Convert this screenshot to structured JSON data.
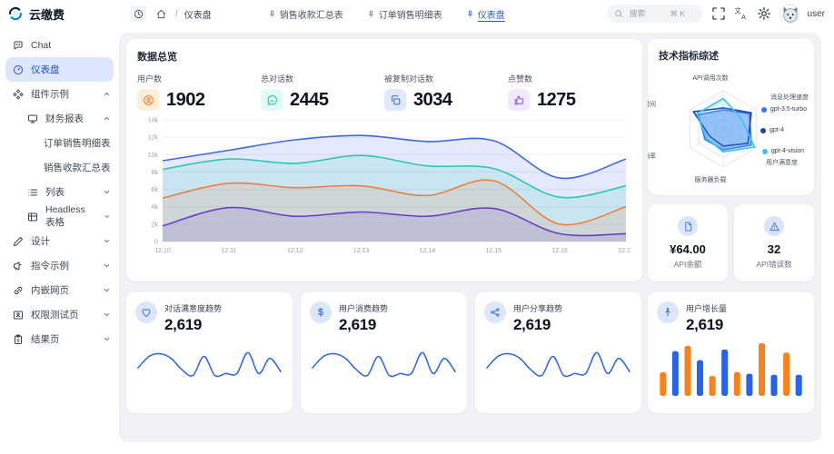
{
  "colors": {
    "accent": "#2b59d8",
    "panel_bg": "#f0f2f5"
  },
  "header": {
    "app_title": "云缴费",
    "breadcrumb": {
      "separator": "/",
      "page": "仪表盘"
    },
    "tabs": [
      {
        "label": "销售收款汇总表",
        "active": false
      },
      {
        "label": "订单销售明细表",
        "active": false
      },
      {
        "label": "仪表盘",
        "active": true
      }
    ],
    "search": {
      "placeholder": "搜索",
      "shortcut": "⌘ K"
    },
    "user_label": "user"
  },
  "sidebar": {
    "items": [
      {
        "label": "Chat",
        "icon": "chat-icon",
        "level": 0
      },
      {
        "label": "仪表盘",
        "icon": "dashboard-icon",
        "level": 0,
        "active": true
      },
      {
        "label": "组件示例",
        "icon": "components-icon",
        "level": 0,
        "expanded": true
      },
      {
        "label": "财务报表",
        "icon": "monitor-icon",
        "level": 1,
        "expanded": true
      },
      {
        "label": "订单销售明细表",
        "level": 2
      },
      {
        "label": "销售收款汇总表",
        "level": 2
      },
      {
        "label": "列表",
        "icon": "list-icon",
        "level": 1,
        "expanded": false
      },
      {
        "label": "Headless 表格",
        "icon": "table-icon",
        "level": 1,
        "expanded": false
      },
      {
        "label": "设计",
        "icon": "pen-icon",
        "level": 0,
        "expanded": false
      },
      {
        "label": "指令示例",
        "icon": "megaphone-icon",
        "level": 0,
        "expanded": false
      },
      {
        "label": "内嵌网页",
        "icon": "link-icon",
        "level": 0,
        "expanded": false
      },
      {
        "label": "权限测试页",
        "icon": "idcard-icon",
        "level": 0,
        "expanded": false
      },
      {
        "label": "结果页",
        "icon": "clipboard-icon",
        "level": 0,
        "expanded": false
      }
    ]
  },
  "overview": {
    "title": "数据总览",
    "stats": [
      {
        "label": "用户数",
        "value": "1902",
        "icon": "user-circle-icon",
        "color": "#f5853b",
        "bg": "#fdeeda"
      },
      {
        "label": "总对话数",
        "value": "2445",
        "icon": "message-icon",
        "color": "#22c6a8",
        "bg": "#e1faf2"
      },
      {
        "label": "被复制对话数",
        "value": "3034",
        "icon": "copy-icon",
        "color": "#3e6ce6",
        "bg": "#dfeafc"
      },
      {
        "label": "点赞数",
        "value": "1275",
        "icon": "thumbs-up-icon",
        "color": "#9254de",
        "bg": "#f2e9fd"
      }
    ]
  },
  "tech": {
    "title": "技术指标综述",
    "axis_top": "API调用次数",
    "axis_right_top": "消息处理速度",
    "axis_right_bottom": "用户满意度",
    "axis_bottom": "服务器负载",
    "axis_left_top": "响应时间",
    "axis_left_bottom": "准确率",
    "legend": [
      {
        "label": "gpt-3.5-turbo",
        "color": "#2f7bf6"
      },
      {
        "label": "gpt-4",
        "color": "#1e3fae"
      },
      {
        "label": "gpt-4-vision",
        "color": "#37c5f0"
      }
    ]
  },
  "balance_card": {
    "value": "¥64.00",
    "label": "API余额"
  },
  "error_card": {
    "value": "32",
    "label": "API错误数"
  },
  "trend_cards": [
    {
      "title": "对话满意度趋势",
      "value": "2,619",
      "icon": "heart-icon"
    },
    {
      "title": "用户消费趋势",
      "value": "2,619",
      "icon": "dollar-icon"
    },
    {
      "title": "用户分享趋势",
      "value": "2,619",
      "icon": "share-icon"
    },
    {
      "title": "用户增长量",
      "value": "2,619",
      "icon": "user-growth-icon"
    }
  ],
  "chart_data": [
    {
      "id": "overview-area",
      "type": "area",
      "x": [
        "12.10",
        "12.11",
        "12.12",
        "12.13",
        "12.14",
        "12.15",
        "12.16",
        "12.17"
      ],
      "yticks": [
        "0",
        "2k",
        "4k",
        "6k",
        "8k",
        "10k",
        "12k",
        "14k"
      ],
      "ylim": [
        0,
        14000
      ],
      "grid": true,
      "legend_position": "none",
      "series": [
        {
          "name": "blue",
          "color": "#3d6be3",
          "values": [
            9300,
            10500,
            11700,
            12200,
            11500,
            11600,
            7300,
            9500
          ]
        },
        {
          "name": "teal",
          "color": "#2ec7b5",
          "values": [
            8300,
            9500,
            9000,
            9900,
            8700,
            8400,
            5100,
            6400
          ]
        },
        {
          "name": "orange",
          "color": "#ee7d3e",
          "values": [
            5000,
            6700,
            6200,
            6400,
            5300,
            7000,
            2000,
            4000
          ]
        },
        {
          "name": "purple",
          "color": "#6b3fc4",
          "values": [
            1800,
            3900,
            2900,
            3400,
            2900,
            3800,
            900,
            900
          ]
        }
      ]
    },
    {
      "id": "tech-radar",
      "type": "radar",
      "max": 100,
      "axes": [
        "API调用次数",
        "消息处理速度",
        "用户满意度",
        "服务器负载",
        "准确率",
        "响应时间"
      ],
      "series": [
        {
          "name": "gpt-3.5-turbo",
          "color": "#2f7bf6",
          "fill": "rgba(86,140,245,0.55)",
          "values": [
            50,
            80,
            85,
            55,
            55,
            75
          ]
        },
        {
          "name": "gpt-4",
          "color": "#1e3fae",
          "fill": "none",
          "values": [
            55,
            85,
            75,
            45,
            40,
            90
          ]
        },
        {
          "name": "gpt-4-vision",
          "color": "#37c5f0",
          "fill": "rgba(96,200,245,0.18)",
          "values": [
            80,
            55,
            95,
            60,
            50,
            80
          ]
        }
      ]
    },
    {
      "id": "trend-line",
      "type": "line",
      "color": "#2563eb",
      "values": [
        45,
        75,
        82,
        70,
        40,
        25,
        75,
        25,
        30,
        30,
        85,
        30,
        70,
        35
      ]
    },
    {
      "id": "growth-bars",
      "type": "bar",
      "values": [
        45,
        85,
        95,
        68,
        38,
        88,
        45,
        42,
        100,
        40,
        82,
        40
      ],
      "colors": [
        "#f9821a",
        "#2563eb"
      ]
    }
  ]
}
